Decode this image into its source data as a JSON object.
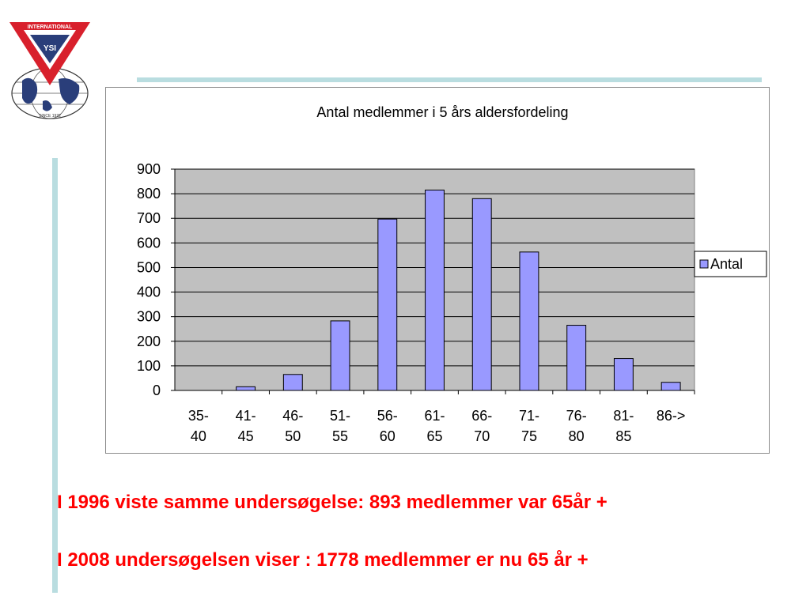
{
  "logo": {
    "top_text": "INTERNATIONAL",
    "center_letters": "YSI",
    "bottom_text": "SINCE 1922"
  },
  "chart_data": {
    "type": "bar",
    "title": "Antal medlemmer i  5 års aldersfordeling",
    "categories": [
      [
        "35-",
        "40"
      ],
      [
        "41-",
        "45"
      ],
      [
        "46-",
        "50"
      ],
      [
        "51-",
        "55"
      ],
      [
        "56-",
        "60"
      ],
      [
        "61-",
        "65"
      ],
      [
        "66-",
        "70"
      ],
      [
        "71-",
        "75"
      ],
      [
        "76-",
        "80"
      ],
      [
        "81-",
        "85"
      ],
      [
        "86->"
      ]
    ],
    "series": [
      {
        "name": "Antal",
        "values": [
          0,
          15,
          65,
          283,
          697,
          815,
          780,
          563,
          265,
          130,
          33
        ],
        "color": "#9999ff"
      }
    ],
    "ylim": [
      0,
      900
    ],
    "yticks": [
      0,
      100,
      200,
      300,
      400,
      500,
      600,
      700,
      800,
      900
    ],
    "grid": true,
    "plot_background": "#c0c0c0",
    "legend": "right"
  },
  "statements": [
    "I 1996 viste samme undersøgelse: 893 medlemmer var 65år +",
    "I 2008 undersøgelsen viser : 1778 medlemmer er nu 65 år +"
  ],
  "colors": {
    "statement_text": "#ff0000",
    "accent_rule": "#b9dde0",
    "logo_red": "#d8202c",
    "logo_navy": "#2a3e7a"
  }
}
